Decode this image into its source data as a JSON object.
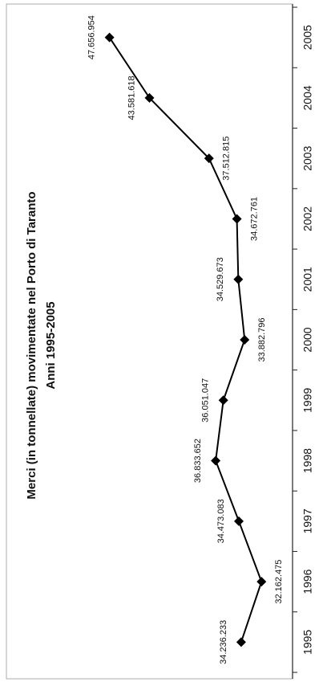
{
  "chart_data": {
    "type": "line",
    "title": "Merci (in tonnellate) movimentate nel Porto di Taranto",
    "subtitle": "Anni 1995-2005",
    "categories": [
      "1995",
      "1996",
      "1997",
      "1998",
      "1999",
      "2000",
      "2001",
      "2002",
      "2003",
      "2004",
      "2005"
    ],
    "series": [
      {
        "name": "Merci",
        "color": "#000000",
        "values": [
          34236233,
          32162475,
          34473083,
          36833652,
          36051047,
          33882796,
          34529673,
          34672761,
          37512815,
          43581618,
          47656954
        ],
        "value_labels": [
          "34.236.233",
          "32.162.475",
          "34.473.083",
          "36.833.652",
          "36.051.047",
          "33.882.796",
          "34.529.673",
          "34.672.761",
          "37.512.815",
          "43.581.618",
          "47.656.954"
        ]
      }
    ],
    "ylim": [
      29000000,
      58000000
    ]
  }
}
